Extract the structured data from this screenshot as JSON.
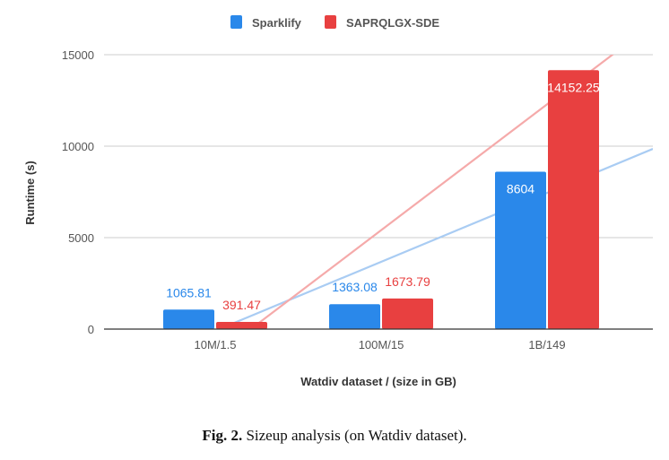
{
  "chart_data": {
    "type": "bar",
    "title": "",
    "xlabel": "Watdiv dataset / (size in GB)",
    "ylabel": "Runtime (s)",
    "categories": [
      "10M/1.5",
      "100M/15",
      "1B/149"
    ],
    "series": [
      {
        "name": "Sparklify",
        "values": [
          1065.81,
          1363.08,
          8604
        ],
        "color": "#2a88ea",
        "trendline_color": "#a9ccf3"
      },
      {
        "name": "SAPRQLGX-SDE",
        "values": [
          391.47,
          1673.79,
          14152.25
        ],
        "color": "#e84040",
        "trendline_color": "#f5aaaa"
      }
    ],
    "data_labels": [
      "1065.81",
      "1363.08",
      "8604",
      "391.47",
      "1673.79",
      "14152.25"
    ],
    "ylim": [
      0,
      15000
    ],
    "yticks": [
      "0",
      "5000",
      "10000",
      "15000"
    ],
    "grid": true,
    "trendlines": "linear",
    "legend_position": "top"
  },
  "caption": {
    "label": "Fig. 2.",
    "text": "Sizeup analysis (on Watdiv dataset)."
  }
}
